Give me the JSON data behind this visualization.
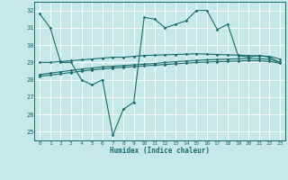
{
  "xlabel": "Humidex (Indice chaleur)",
  "ylabel": "",
  "background_color": "#c6e8e8",
  "line_color": "#1a6b6b",
  "grid_color": "#ffffff",
  "xlim": [
    -0.5,
    23.5
  ],
  "ylim": [
    24.5,
    32.5
  ],
  "yticks": [
    25,
    26,
    27,
    28,
    29,
    30,
    31,
    32
  ],
  "xticks": [
    0,
    1,
    2,
    3,
    4,
    5,
    6,
    7,
    8,
    9,
    10,
    11,
    12,
    13,
    14,
    15,
    16,
    17,
    18,
    19,
    20,
    21,
    22,
    23
  ],
  "series": [
    {
      "x": [
        0,
        1,
        2,
        3,
        4,
        5,
        6,
        7,
        8,
        9,
        10,
        11,
        12,
        13,
        14,
        15,
        16,
        17,
        18,
        19,
        20,
        21,
        22,
        23
      ],
      "y": [
        31.8,
        31.0,
        29.0,
        29.0,
        28.0,
        27.7,
        28.0,
        24.8,
        26.3,
        26.7,
        31.6,
        31.5,
        31.0,
        31.2,
        31.4,
        32.0,
        32.0,
        30.9,
        31.2,
        29.4,
        29.3,
        29.4,
        29.3,
        29.0
      ]
    },
    {
      "x": [
        0,
        1,
        2,
        3,
        4,
        5,
        6,
        7,
        8,
        9,
        10,
        11,
        12,
        13,
        14,
        15,
        16,
        17,
        18,
        19,
        20,
        21,
        22,
        23
      ],
      "y": [
        29.0,
        29.0,
        29.05,
        29.1,
        29.15,
        29.2,
        29.25,
        29.3,
        29.3,
        29.35,
        29.4,
        29.42,
        29.44,
        29.46,
        29.48,
        29.5,
        29.48,
        29.46,
        29.44,
        29.42,
        29.4,
        29.38,
        29.35,
        29.2
      ]
    },
    {
      "x": [
        0,
        1,
        2,
        3,
        4,
        5,
        6,
        7,
        8,
        9,
        10,
        11,
        12,
        13,
        14,
        15,
        16,
        17,
        18,
        19,
        20,
        21,
        22,
        23
      ],
      "y": [
        28.3,
        28.38,
        28.46,
        28.54,
        28.62,
        28.68,
        28.74,
        28.78,
        28.82,
        28.86,
        28.9,
        28.94,
        29.0,
        29.04,
        29.08,
        29.12,
        29.15,
        29.17,
        29.19,
        29.21,
        29.22,
        29.22,
        29.18,
        29.0
      ]
    },
    {
      "x": [
        0,
        1,
        2,
        3,
        4,
        5,
        6,
        7,
        8,
        9,
        10,
        11,
        12,
        13,
        14,
        15,
        16,
        17,
        18,
        19,
        20,
        21,
        22,
        23
      ],
      "y": [
        28.2,
        28.27,
        28.34,
        28.42,
        28.5,
        28.57,
        28.63,
        28.68,
        28.72,
        28.76,
        28.8,
        28.84,
        28.88,
        28.92,
        28.96,
        29.0,
        29.02,
        29.04,
        29.06,
        29.08,
        29.1,
        29.1,
        29.06,
        28.95
      ]
    }
  ]
}
